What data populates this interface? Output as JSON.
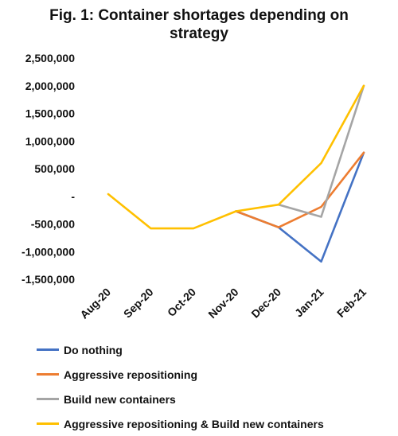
{
  "chart_data": {
    "type": "line",
    "title": "Fig. 1: Container shortages depending on strategy",
    "title_lines": [
      "Fig. 1: Container shortages depending on",
      "strategy"
    ],
    "categories": [
      "Aug-20",
      "Sep-20",
      "Oct-20",
      "Nov-20",
      "Dec-20",
      "Jan-21",
      "Feb-21"
    ],
    "ylim": [
      -1500000,
      2500000
    ],
    "yticks": [
      2500000,
      2000000,
      1500000,
      1000000,
      500000,
      0,
      -500000,
      -1000000,
      -1500000
    ],
    "ytick_labels": [
      "2,500,000",
      "2,000,000",
      "1,500,000",
      "1,000,000",
      "500,000",
      "-",
      "-500,000",
      "-1,000,000",
      "-1,500,000"
    ],
    "grid": false,
    "legend_position": "bottom",
    "series": [
      {
        "name": "Do nothing",
        "color": "#4472C4",
        "values": [
          null,
          null,
          null,
          -270000,
          -560000,
          -1180000,
          790000
        ]
      },
      {
        "name": "Aggressive repositioning",
        "color": "#ED7D31",
        "values": [
          null,
          null,
          null,
          -270000,
          -560000,
          -190000,
          790000
        ]
      },
      {
        "name": "Build new containers",
        "color": "#A5A5A5",
        "values": [
          null,
          null,
          null,
          null,
          -150000,
          -370000,
          2000000
        ]
      },
      {
        "name": "Aggressive repositioning & Build new containers",
        "color": "#FFC000",
        "values": [
          40000,
          -580000,
          -580000,
          -270000,
          -150000,
          600000,
          2000000
        ]
      }
    ]
  }
}
